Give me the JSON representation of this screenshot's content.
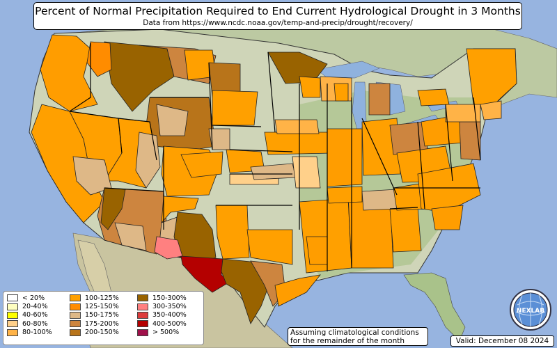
{
  "title": "Percent of Normal Precipitation Required to End Current Hydrological Drought in 3 Months",
  "subtitle": "Data from https://www.ncdc.noaa.gov/temp-and-precip/drought/recovery/",
  "legend": {
    "columns": [
      [
        {
          "label": "< 20%",
          "color": "#ffffff"
        },
        {
          "label": "20-40%",
          "color": "#ffffc0"
        },
        {
          "label": "40-60%",
          "color": "#ffff00"
        },
        {
          "label": "60-80%",
          "color": "#ffd08a"
        },
        {
          "label": "80-100%",
          "color": "#ffb347"
        }
      ],
      [
        {
          "label": "100-125%",
          "color": "#ffa000"
        },
        {
          "label": "125-150%",
          "color": "#ff8c00"
        },
        {
          "label": "150-175%",
          "color": "#deb887"
        },
        {
          "label": "175-200%",
          "color": "#cd853f"
        },
        {
          "label": "200-150%",
          "color": "#b8741a"
        }
      ],
      [
        {
          "label": "150-300%",
          "color": "#996300"
        },
        {
          "label": "300-350%",
          "color": "#ff8080"
        },
        {
          "label": "350-400%",
          "color": "#dc3c3c"
        },
        {
          "label": "400-500%",
          "color": "#b40000"
        },
        {
          "label": "> 500%",
          "color": "#a0104a"
        }
      ]
    ]
  },
  "note": [
    "Assuming climatological conditions",
    "for the remainder of the month"
  ],
  "valid": "Valid: December 08 2024",
  "logo_text": "NEXLAB",
  "colors": {
    "ocean": "#97b4e0",
    "land_base": "#cfd5b8",
    "land_green": "#a9c28a",
    "water": "#8fb2de"
  }
}
